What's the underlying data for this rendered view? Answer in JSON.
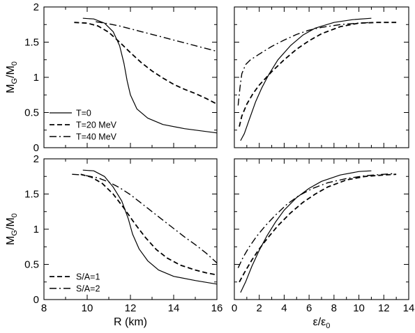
{
  "chart_data": [
    {
      "panel": "top-left",
      "type": "line",
      "ylabel": "M_G/M_0",
      "xlim": [
        8,
        16
      ],
      "ylim": [
        0,
        2
      ],
      "xticks": [
        8,
        10,
        12,
        14,
        16
      ],
      "yticks": [
        0,
        0.5,
        1,
        1.5,
        2
      ],
      "ytick_labels": [
        "0",
        "0.5",
        "1",
        "1.5",
        "2"
      ],
      "show_xtick_labels": false,
      "show_ytick_labels": true,
      "legend": {
        "position": "lower-left",
        "items": [
          {
            "label": "T=0",
            "style": "solid"
          },
          {
            "label": "T=20 MeV",
            "style": "dashed"
          },
          {
            "label": "T=40 MeV",
            "style": "dashdot"
          }
        ]
      },
      "series": [
        {
          "name": "T=0",
          "style": "solid",
          "points": [
            [
              9.8,
              1.84
            ],
            [
              10.3,
              1.83
            ],
            [
              10.8,
              1.77
            ],
            [
              11.2,
              1.65
            ],
            [
              11.5,
              1.45
            ],
            [
              11.7,
              1.2
            ],
            [
              11.85,
              0.95
            ],
            [
              12.0,
              0.75
            ],
            [
              12.3,
              0.55
            ],
            [
              12.8,
              0.42
            ],
            [
              13.5,
              0.33
            ],
            [
              14.5,
              0.27
            ],
            [
              16.0,
              0.21
            ]
          ]
        },
        {
          "name": "T=20 MeV",
          "style": "dashed",
          "points": [
            [
              9.4,
              1.78
            ],
            [
              10.0,
              1.77
            ],
            [
              10.5,
              1.73
            ],
            [
              11.0,
              1.64
            ],
            [
              11.5,
              1.5
            ],
            [
              12.0,
              1.35
            ],
            [
              12.5,
              1.21
            ],
            [
              13.0,
              1.09
            ],
            [
              13.5,
              0.99
            ],
            [
              14.0,
              0.9
            ],
            [
              14.5,
              0.83
            ],
            [
              15.0,
              0.77
            ],
            [
              15.5,
              0.7
            ],
            [
              16.0,
              0.62
            ]
          ]
        },
        {
          "name": "T=40 MeV",
          "style": "dashdot",
          "points": [
            [
              10.4,
              1.79
            ],
            [
              11.0,
              1.76
            ],
            [
              11.5,
              1.73
            ],
            [
              12.0,
              1.69
            ],
            [
              12.5,
              1.65
            ],
            [
              13.0,
              1.61
            ],
            [
              13.5,
              1.57
            ],
            [
              14.0,
              1.53
            ],
            [
              14.5,
              1.49
            ],
            [
              15.0,
              1.45
            ],
            [
              15.5,
              1.41
            ],
            [
              16.0,
              1.37
            ]
          ]
        }
      ]
    },
    {
      "panel": "top-right",
      "type": "line",
      "xlim": [
        0,
        14
      ],
      "ylim": [
        0,
        2
      ],
      "xticks": [
        0,
        2,
        4,
        6,
        8,
        10,
        12,
        14
      ],
      "yticks": [
        0,
        0.5,
        1,
        1.5,
        2
      ],
      "show_xtick_labels": false,
      "show_ytick_labels": false,
      "series": [
        {
          "name": "T=0",
          "style": "solid",
          "points": [
            [
              0.5,
              0.1
            ],
            [
              0.8,
              0.2
            ],
            [
              1.2,
              0.4
            ],
            [
              1.7,
              0.65
            ],
            [
              2.2,
              0.85
            ],
            [
              2.8,
              1.05
            ],
            [
              3.5,
              1.25
            ],
            [
              4.5,
              1.45
            ],
            [
              5.5,
              1.6
            ],
            [
              6.5,
              1.7
            ],
            [
              8.0,
              1.78
            ],
            [
              9.5,
              1.82
            ],
            [
              11.0,
              1.84
            ]
          ]
        },
        {
          "name": "T=20 MeV",
          "style": "dashed",
          "points": [
            [
              0.4,
              0.3
            ],
            [
              0.6,
              0.45
            ],
            [
              1.0,
              0.62
            ],
            [
              1.5,
              0.77
            ],
            [
              2.0,
              0.89
            ],
            [
              3.0,
              1.08
            ],
            [
              4.0,
              1.25
            ],
            [
              5.0,
              1.4
            ],
            [
              6.0,
              1.52
            ],
            [
              7.0,
              1.62
            ],
            [
              8.5,
              1.72
            ],
            [
              10.0,
              1.77
            ],
            [
              11.5,
              1.78
            ],
            [
              13.0,
              1.78
            ]
          ]
        },
        {
          "name": "T=40 MeV",
          "style": "dashdot",
          "points": [
            [
              0.3,
              0.6
            ],
            [
              0.45,
              0.85
            ],
            [
              0.6,
              1.05
            ],
            [
              0.9,
              1.18
            ],
            [
              1.3,
              1.25
            ],
            [
              2.0,
              1.33
            ],
            [
              3.0,
              1.44
            ],
            [
              4.0,
              1.53
            ],
            [
              5.0,
              1.61
            ],
            [
              6.0,
              1.67
            ],
            [
              7.0,
              1.71
            ],
            [
              8.5,
              1.75
            ],
            [
              10.0,
              1.77
            ],
            [
              11.0,
              1.78
            ]
          ]
        }
      ]
    },
    {
      "panel": "bottom-left",
      "type": "line",
      "xlabel": "R (km)",
      "ylabel": "M_G/M_0",
      "xlim": [
        8,
        16
      ],
      "ylim": [
        0,
        2
      ],
      "xticks": [
        8,
        10,
        12,
        14,
        16
      ],
      "yticks": [
        0,
        0.5,
        1,
        1.5,
        2
      ],
      "ytick_labels": [
        "0",
        "0.5",
        "1",
        "1.5",
        "2"
      ],
      "show_xtick_labels": true,
      "show_ytick_labels": true,
      "legend": {
        "position": "lower-left",
        "items": [
          {
            "label": "S/A=1",
            "style": "dashed"
          },
          {
            "label": "S/A=2",
            "style": "dashdot"
          }
        ]
      },
      "series": [
        {
          "name": "T=0",
          "style": "solid",
          "points": [
            [
              9.8,
              1.84
            ],
            [
              10.3,
              1.83
            ],
            [
              10.8,
              1.75
            ],
            [
              11.2,
              1.6
            ],
            [
              11.6,
              1.4
            ],
            [
              11.9,
              1.15
            ],
            [
              12.1,
              0.93
            ],
            [
              12.4,
              0.72
            ],
            [
              12.8,
              0.55
            ],
            [
              13.3,
              0.42
            ],
            [
              14.0,
              0.33
            ],
            [
              15.0,
              0.27
            ],
            [
              16.0,
              0.22
            ]
          ]
        },
        {
          "name": "S/A=1",
          "style": "dashed",
          "points": [
            [
              9.7,
              1.78
            ],
            [
              10.2,
              1.74
            ],
            [
              10.7,
              1.65
            ],
            [
              11.2,
              1.5
            ],
            [
              11.7,
              1.3
            ],
            [
              12.2,
              1.08
            ],
            [
              12.7,
              0.88
            ],
            [
              13.2,
              0.71
            ],
            [
              13.7,
              0.59
            ],
            [
              14.3,
              0.49
            ],
            [
              15.0,
              0.42
            ],
            [
              15.5,
              0.38
            ],
            [
              16.0,
              0.35
            ]
          ]
        },
        {
          "name": "S/A=2",
          "style": "dashdot",
          "points": [
            [
              9.3,
              1.78
            ],
            [
              9.8,
              1.77
            ],
            [
              10.5,
              1.73
            ],
            [
              11.0,
              1.67
            ],
            [
              11.5,
              1.59
            ],
            [
              12.0,
              1.49
            ],
            [
              12.5,
              1.37
            ],
            [
              13.0,
              1.25
            ],
            [
              13.5,
              1.13
            ],
            [
              14.0,
              1.01
            ],
            [
              14.5,
              0.89
            ],
            [
              15.0,
              0.78
            ],
            [
              15.5,
              0.66
            ],
            [
              16.0,
              0.52
            ]
          ]
        }
      ]
    },
    {
      "panel": "bottom-right",
      "type": "line",
      "xlabel": "ε/ε_0",
      "xlim": [
        0,
        14
      ],
      "ylim": [
        0,
        2
      ],
      "xticks": [
        0,
        2,
        4,
        6,
        8,
        10,
        12,
        14
      ],
      "xtick_labels": [
        "0",
        "2",
        "4",
        "6",
        "8",
        "10",
        "12",
        "14"
      ],
      "yticks": [
        0,
        0.5,
        1,
        1.5,
        2
      ],
      "show_xtick_labels": true,
      "show_ytick_labels": false,
      "series": [
        {
          "name": "T=0",
          "style": "solid",
          "points": [
            [
              0.5,
              0.1
            ],
            [
              0.9,
              0.25
            ],
            [
              1.4,
              0.47
            ],
            [
              2.0,
              0.7
            ],
            [
              2.6,
              0.9
            ],
            [
              3.3,
              1.1
            ],
            [
              4.0,
              1.27
            ],
            [
              5.0,
              1.45
            ],
            [
              6.0,
              1.58
            ],
            [
              7.0,
              1.68
            ],
            [
              8.5,
              1.77
            ],
            [
              10.0,
              1.82
            ],
            [
              11.0,
              1.83
            ]
          ]
        },
        {
          "name": "S/A=1",
          "style": "dashed",
          "points": [
            [
              0.4,
              0.25
            ],
            [
              0.8,
              0.38
            ],
            [
              1.4,
              0.56
            ],
            [
              2.0,
              0.72
            ],
            [
              2.7,
              0.88
            ],
            [
              3.5,
              1.05
            ],
            [
              4.5,
              1.23
            ],
            [
              5.5,
              1.38
            ],
            [
              6.5,
              1.5
            ],
            [
              7.5,
              1.6
            ],
            [
              9.0,
              1.7
            ],
            [
              10.5,
              1.75
            ],
            [
              12.0,
              1.77
            ],
            [
              13.0,
              1.78
            ]
          ]
        },
        {
          "name": "S/A=2",
          "style": "dashdot",
          "points": [
            [
              0.3,
              0.45
            ],
            [
              0.7,
              0.6
            ],
            [
              1.2,
              0.75
            ],
            [
              1.8,
              0.9
            ],
            [
              2.5,
              1.05
            ],
            [
              3.3,
              1.2
            ],
            [
              4.2,
              1.35
            ],
            [
              5.2,
              1.48
            ],
            [
              6.3,
              1.58
            ],
            [
              7.5,
              1.66
            ],
            [
              9.0,
              1.72
            ],
            [
              10.5,
              1.76
            ],
            [
              12.0,
              1.78
            ],
            [
              12.8,
              1.79
            ]
          ]
        }
      ]
    }
  ]
}
